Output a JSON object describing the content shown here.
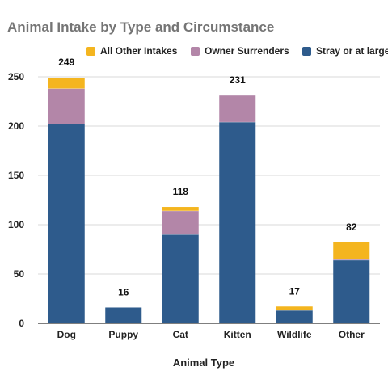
{
  "chart_data": {
    "type": "bar",
    "stacked": true,
    "title": "Animal Intake by Type and Circumstance",
    "xlabel": "Animal Type",
    "ylabel": "",
    "ylim": [
      0,
      250
    ],
    "yticks": [
      0,
      50,
      100,
      150,
      200,
      250
    ],
    "grid": true,
    "legend_position": "top",
    "categories": [
      "Dog",
      "Puppy",
      "Cat",
      "Kitten",
      "Wildlife",
      "Other"
    ],
    "series": [
      {
        "name": "Stray or at large",
        "color": "#2e5b8c",
        "values": [
          202,
          16,
          90,
          204,
          13,
          64
        ]
      },
      {
        "name": "Owner Surrenders",
        "color": "#b386a8",
        "values": [
          36,
          0,
          24,
          27,
          0,
          1
        ]
      },
      {
        "name": "All Other Intakes",
        "color": "#f4b51f",
        "values": [
          11,
          0,
          4,
          0,
          4,
          17
        ]
      }
    ],
    "legend_order": [
      "All Other Intakes",
      "Owner Surrenders",
      "Stray or at large"
    ],
    "totals": [
      249,
      16,
      118,
      231,
      17,
      82
    ]
  }
}
